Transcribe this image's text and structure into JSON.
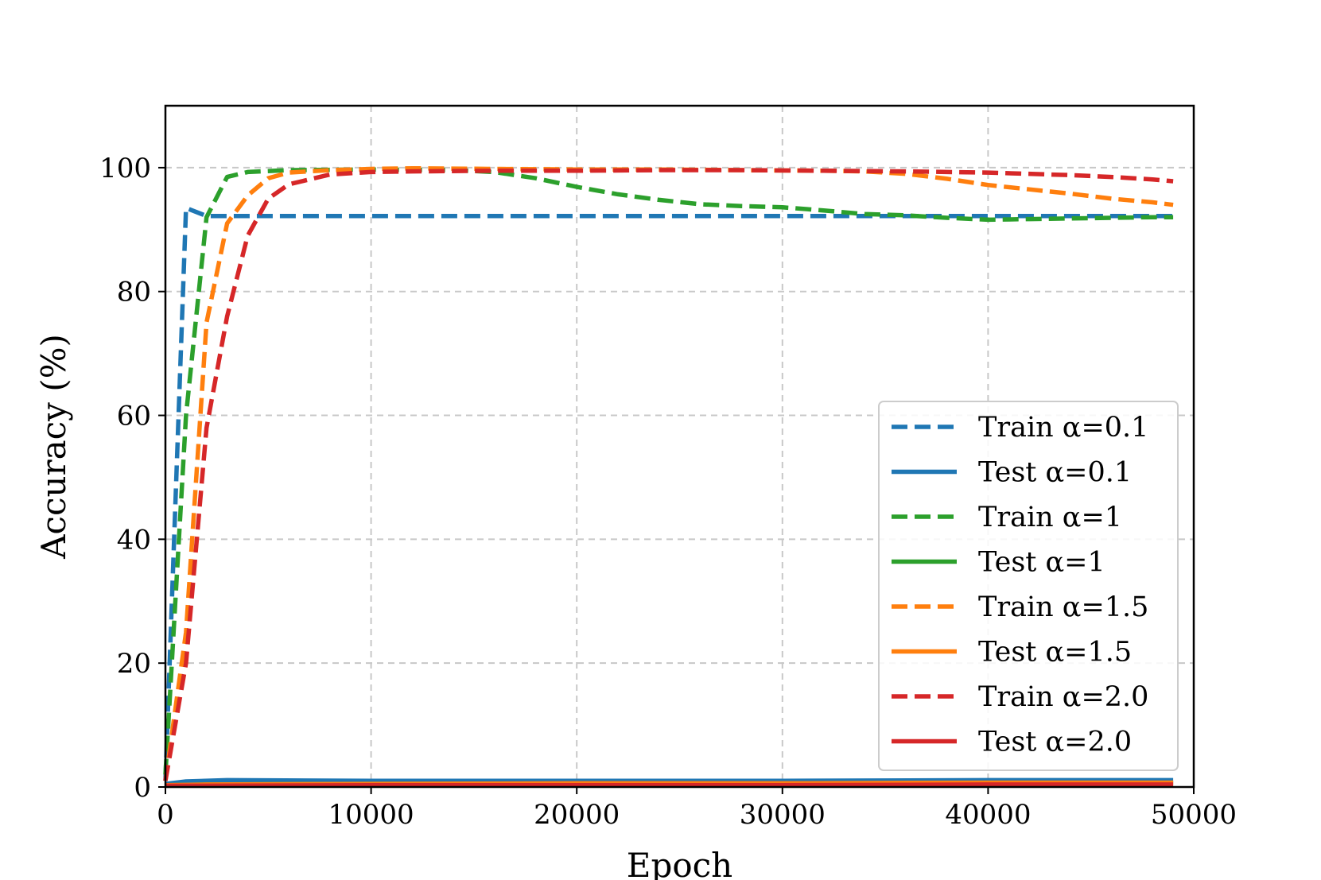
{
  "chart_data": {
    "type": "line",
    "title": "",
    "xlabel": "Epoch",
    "ylabel": "Accuracy (%)",
    "xlim": [
      0,
      50000
    ],
    "ylim": [
      0,
      110
    ],
    "xticks": [
      0,
      10000,
      20000,
      30000,
      40000,
      50000
    ],
    "yticks": [
      0,
      20,
      40,
      60,
      80,
      100
    ],
    "xtick_labels": [
      "0",
      "10000",
      "20000",
      "30000",
      "40000",
      "50000"
    ],
    "ytick_labels": [
      "0",
      "20",
      "40",
      "60",
      "80",
      "100"
    ],
    "grid": true,
    "legend_position": "lower right",
    "series": [
      {
        "name": "Train α=0.1",
        "color": "#1f77b4",
        "style": "dashed",
        "x": [
          0,
          1000,
          2000,
          5000,
          10000,
          20000,
          30000,
          40000,
          49000
        ],
        "y": [
          1,
          93.5,
          92.2,
          92.2,
          92.2,
          92.2,
          92.2,
          92.2,
          92.2
        ]
      },
      {
        "name": "Test α=0.1",
        "color": "#1f77b4",
        "style": "solid",
        "x": [
          0,
          1000,
          3000,
          10000,
          20000,
          30000,
          40000,
          49000
        ],
        "y": [
          0.5,
          0.9,
          1.1,
          1.0,
          1.0,
          1.0,
          1.1,
          1.1
        ]
      },
      {
        "name": "Train α=1",
        "color": "#2ca02c",
        "style": "dashed",
        "x": [
          0,
          1000,
          2000,
          3000,
          4000,
          6000,
          10000,
          14000,
          16000,
          18000,
          20000,
          22000,
          24000,
          26000,
          28000,
          30000,
          32000,
          34000,
          36000,
          38000,
          40000,
          42000,
          44000,
          46000,
          48000,
          49000
        ],
        "y": [
          2,
          60,
          92,
          98.5,
          99.3,
          99.6,
          99.7,
          99.6,
          99.3,
          98.3,
          96.9,
          95.7,
          94.8,
          94.1,
          93.8,
          93.6,
          93.1,
          92.5,
          92.3,
          91.9,
          91.6,
          91.7,
          91.8,
          91.9,
          92.0,
          92.0
        ]
      },
      {
        "name": "Test α=1",
        "color": "#2ca02c",
        "style": "solid",
        "x": [
          0,
          2000,
          10000,
          20000,
          30000,
          40000,
          49000
        ],
        "y": [
          0.3,
          0.4,
          0.5,
          0.5,
          0.6,
          0.6,
          0.6
        ]
      },
      {
        "name": "Train α=1.5",
        "color": "#ff7f0e",
        "style": "dashed",
        "x": [
          0,
          1000,
          2000,
          3000,
          4000,
          5000,
          6000,
          8000,
          10000,
          12000,
          16000,
          20000,
          24000,
          28000,
          32000,
          34000,
          36000,
          38000,
          40000,
          42000,
          44000,
          46000,
          48000,
          49000
        ],
        "y": [
          1,
          25,
          75,
          91,
          95.5,
          98.3,
          99.2,
          99.6,
          99.8,
          99.9,
          99.8,
          99.7,
          99.7,
          99.6,
          99.5,
          99.4,
          99.0,
          98.2,
          97.2,
          96.5,
          95.8,
          95.0,
          94.4,
          94.0
        ]
      },
      {
        "name": "Test α=1.5",
        "color": "#ff7f0e",
        "style": "solid",
        "x": [
          0,
          2000,
          10000,
          20000,
          30000,
          40000,
          49000
        ],
        "y": [
          0.3,
          0.4,
          0.5,
          0.6,
          0.6,
          0.7,
          0.7
        ]
      },
      {
        "name": "Train α=2.0",
        "color": "#d62728",
        "style": "dashed",
        "x": [
          0,
          1000,
          2000,
          3000,
          4000,
          5000,
          6000,
          8000,
          10000,
          12000,
          16000,
          20000,
          24000,
          28000,
          32000,
          36000,
          40000,
          44000,
          46000,
          48000,
          49000
        ],
        "y": [
          1,
          20,
          58,
          76,
          89,
          95,
          97.3,
          98.9,
          99.3,
          99.4,
          99.5,
          99.5,
          99.6,
          99.6,
          99.5,
          99.4,
          99.2,
          98.8,
          98.5,
          98.1,
          97.8
        ]
      },
      {
        "name": "Test α=2.0",
        "color": "#d62728",
        "style": "solid",
        "x": [
          0,
          2000,
          10000,
          20000,
          30000,
          40000,
          49000
        ],
        "y": [
          0.2,
          0.2,
          0.3,
          0.3,
          0.3,
          0.4,
          0.4
        ]
      }
    ]
  }
}
